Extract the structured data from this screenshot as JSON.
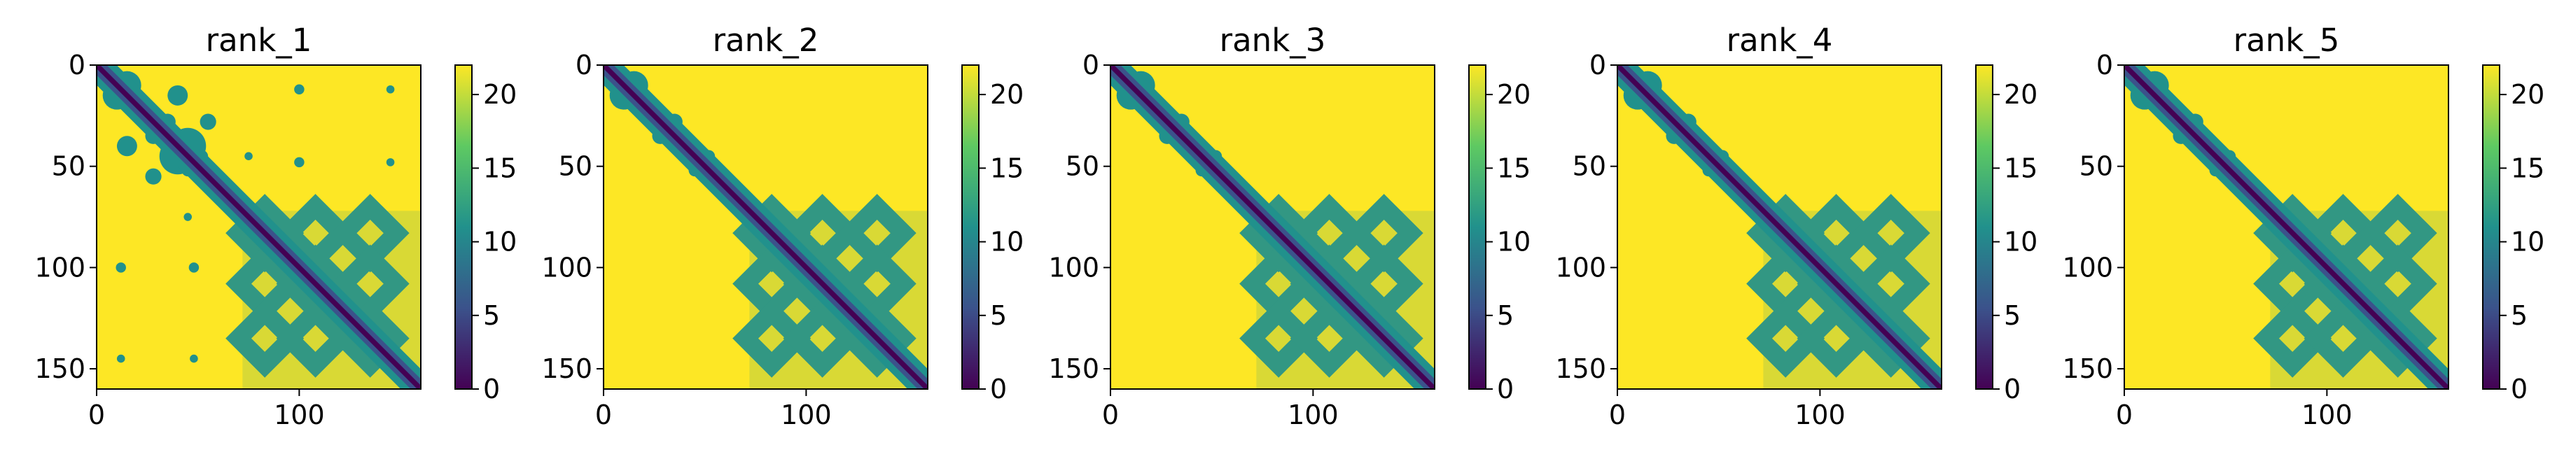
{
  "chart_data": [
    {
      "type": "heatmap",
      "title": "rank_1",
      "xticks": [
        "0",
        "100"
      ],
      "yticks": [
        "0",
        "50",
        "100",
        "150"
      ],
      "xlim": [
        0,
        160
      ],
      "ylim": [
        160,
        0
      ],
      "colorbar": {
        "ticks": [
          "0",
          "5",
          "10",
          "15",
          "20"
        ],
        "range": [
          0,
          22
        ]
      },
      "extra_contacts": true
    },
    {
      "type": "heatmap",
      "title": "rank_2",
      "xticks": [
        "0",
        "100"
      ],
      "yticks": [
        "0",
        "50",
        "100",
        "150"
      ],
      "xlim": [
        0,
        160
      ],
      "ylim": [
        160,
        0
      ],
      "colorbar": {
        "ticks": [
          "0",
          "5",
          "10",
          "15",
          "20"
        ],
        "range": [
          0,
          22
        ]
      },
      "extra_contacts": false
    },
    {
      "type": "heatmap",
      "title": "rank_3",
      "xticks": [
        "0",
        "100"
      ],
      "yticks": [
        "0",
        "50",
        "100",
        "150"
      ],
      "xlim": [
        0,
        160
      ],
      "ylim": [
        160,
        0
      ],
      "colorbar": {
        "ticks": [
          "0",
          "5",
          "10",
          "15",
          "20"
        ],
        "range": [
          0,
          22
        ]
      },
      "extra_contacts": false
    },
    {
      "type": "heatmap",
      "title": "rank_4",
      "xticks": [
        "0",
        "100"
      ],
      "yticks": [
        "0",
        "50",
        "100",
        "150"
      ],
      "xlim": [
        0,
        160
      ],
      "ylim": [
        160,
        0
      ],
      "colorbar": {
        "ticks": [
          "0",
          "5",
          "10",
          "15",
          "20"
        ],
        "range": [
          0,
          22
        ]
      },
      "extra_contacts": false
    },
    {
      "type": "heatmap",
      "title": "rank_5",
      "xticks": [
        "0",
        "100"
      ],
      "yticks": [
        "0",
        "50",
        "100",
        "150"
      ],
      "xlim": [
        0,
        160
      ],
      "ylim": [
        160,
        0
      ],
      "colorbar": {
        "ticks": [
          "0",
          "5",
          "10",
          "15",
          "20"
        ],
        "range": [
          0,
          22
        ]
      },
      "extra_contacts": false
    }
  ],
  "colors": {
    "viridis": [
      "#440154",
      "#3b528b",
      "#21918c",
      "#5ec962",
      "#fde725"
    ]
  }
}
